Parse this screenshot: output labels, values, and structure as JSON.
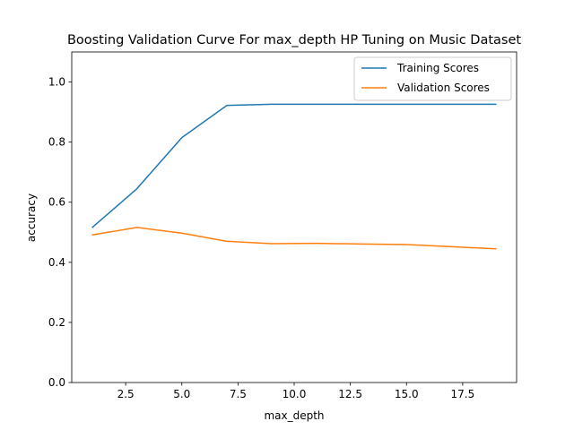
{
  "chart_data": {
    "type": "line",
    "title": "Boosting Validation Curve For max_depth HP Tuning on Music Dataset",
    "xlabel": "max_depth",
    "ylabel": "accuracy",
    "xlim": [
      0.1,
      19.9
    ],
    "ylim": [
      0.0,
      1.1
    ],
    "xticks": [
      2.5,
      5.0,
      7.5,
      10.0,
      12.5,
      15.0,
      17.5
    ],
    "xtick_labels": [
      "2.5",
      "5.0",
      "7.5",
      "10.0",
      "12.5",
      "15.0",
      "17.5"
    ],
    "yticks": [
      0.0,
      0.2,
      0.4,
      0.6,
      0.8,
      1.0
    ],
    "ytick_labels": [
      "0.0",
      "0.2",
      "0.4",
      "0.6",
      "0.8",
      "1.0"
    ],
    "grid": false,
    "legend_position": "top-right",
    "x": [
      1,
      3,
      5,
      7,
      9,
      11,
      13,
      15,
      17,
      19
    ],
    "series": [
      {
        "name": "Training Scores",
        "color": "#1f77b4",
        "values": [
          0.515,
          0.645,
          0.815,
          0.922,
          0.926,
          0.926,
          0.926,
          0.926,
          0.926,
          0.926
        ]
      },
      {
        "name": "Validation Scores",
        "color": "#ff7f0e",
        "values": [
          0.491,
          0.516,
          0.497,
          0.47,
          0.462,
          0.463,
          0.461,
          0.459,
          0.452,
          0.445
        ]
      }
    ]
  }
}
